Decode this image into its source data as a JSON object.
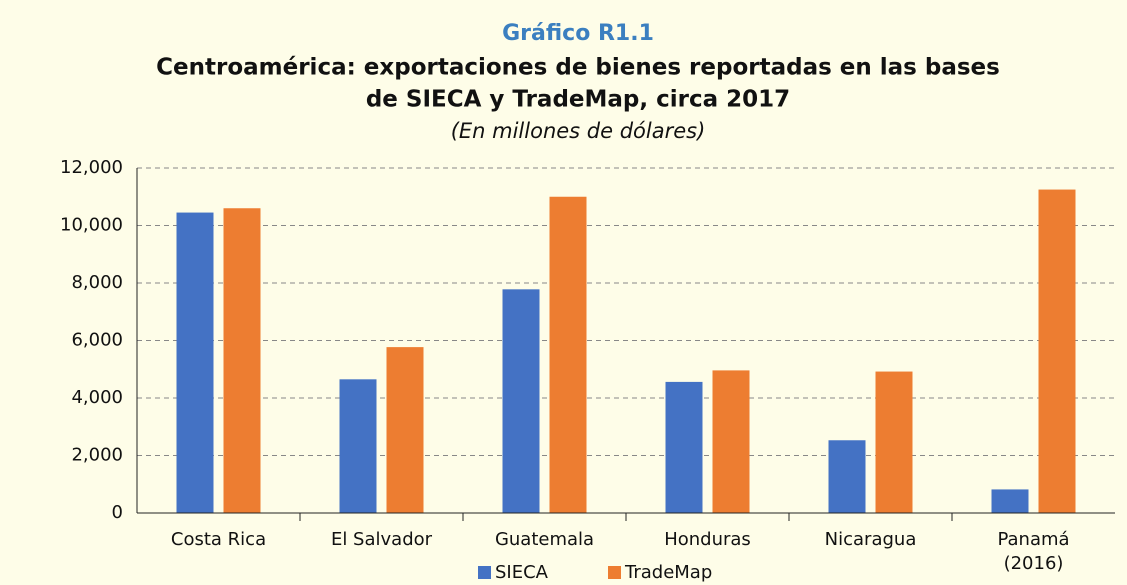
{
  "chart_data": {
    "type": "bar",
    "heading": "Gráfico R1.1",
    "title": [
      "Centroamérica: exportaciones de bienes reportadas en las bases",
      "de SIECA y TradeMap, circa 2017"
    ],
    "subtitle": "(En millones de dólares)",
    "categories": [
      "Costa Rica",
      "El Salvador",
      "Guatemala",
      "Honduras",
      "Nicaragua",
      "Panamá\n(2016)"
    ],
    "series": [
      {
        "name": "SIECA",
        "color": "#4472c4",
        "values": [
          10450,
          4650,
          7780,
          4560,
          2530,
          820
        ]
      },
      {
        "name": "TradeMap",
        "color": "#ed7d31",
        "values": [
          10600,
          5770,
          11000,
          4960,
          4920,
          11250
        ]
      }
    ],
    "ylim": [
      0,
      12000
    ],
    "yticks": [
      0,
      {
        "value": 2000,
        "label": "2,000"
      },
      {
        "value": 4000,
        "label": "4,000"
      },
      {
        "value": 6000,
        "label": "6,000"
      },
      {
        "value": 8000,
        "label": "8,000"
      },
      {
        "value": 10000,
        "label": "10,000"
      },
      {
        "value": 12000,
        "label": "12,000"
      }
    ],
    "grid": true,
    "legend": "bottom"
  }
}
